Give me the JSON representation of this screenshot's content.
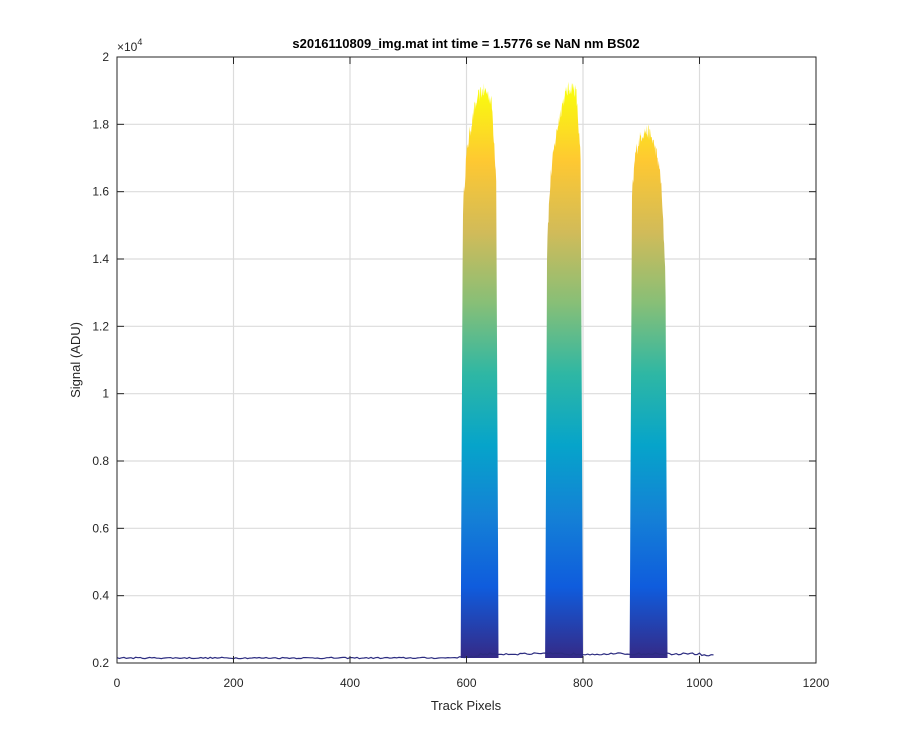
{
  "chart_data": {
    "type": "area",
    "title": "s2016110809_img.mat int time = 1.5776 se  NaN nm BS02",
    "xlabel": "Track Pixels",
    "ylabel": "Signal (ADU)",
    "xlim": [
      0,
      1200
    ],
    "ylim": [
      2000,
      20000
    ],
    "x_ticks": [
      0,
      200,
      400,
      600,
      800,
      1000,
      1200
    ],
    "x_tick_labels": [
      "0",
      "200",
      "400",
      "600",
      "800",
      "1000",
      "1200"
    ],
    "y_ticks": [
      2000,
      4000,
      6000,
      8000,
      10000,
      12000,
      14000,
      16000,
      18000,
      20000
    ],
    "y_tick_labels": [
      "0.2",
      "0.4",
      "0.6",
      "0.8",
      "1",
      "1.2",
      "1.4",
      "1.6",
      "1.8",
      "2"
    ],
    "y_exponent_base": "×10",
    "y_exponent_power": "4",
    "grid": true,
    "colormap": [
      "#352a87",
      "#0f5cdd",
      "#1481d6",
      "#06a4ca",
      "#2eb7a4",
      "#87bf77",
      "#d1bb59",
      "#fec832",
      "#f9fb0e"
    ],
    "baseline_color": "#2c2c80",
    "baseline_level": 2150,
    "x_max": 1024,
    "peaks": [
      {
        "x_start": 590,
        "x_end": 655,
        "peak_x": 630,
        "peak_value": 19000,
        "plateau_value": 18200
      },
      {
        "x_start": 735,
        "x_end": 800,
        "peak_x": 780,
        "peak_value": 19100,
        "plateau_value": 18300
      },
      {
        "x_start": 880,
        "x_end": 945,
        "peak_x": 908,
        "peak_value": 17800,
        "plateau_value": 17000
      }
    ]
  }
}
